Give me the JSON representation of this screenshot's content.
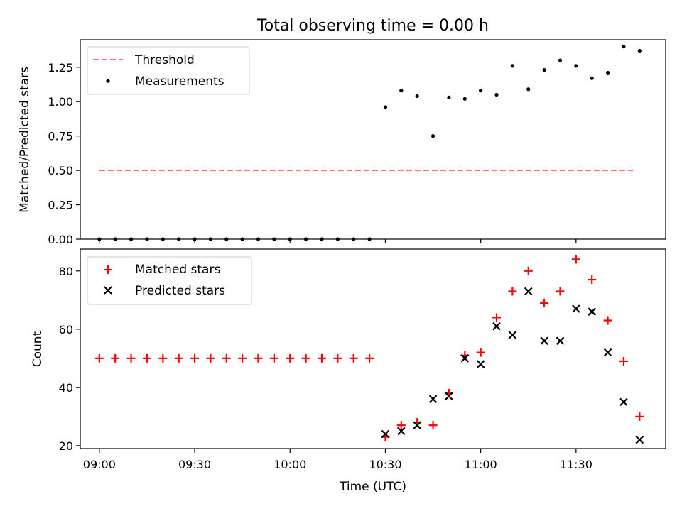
{
  "figure_title": "Total observing time = 0.00 h",
  "chart_data": [
    {
      "type": "scatter",
      "ylabel": "Matched/Predicted stars",
      "xlim": [
        -0.1,
        2.97
      ],
      "ylim": [
        0.0,
        1.45
      ],
      "yticks": [
        0.0,
        0.25,
        0.5,
        0.75,
        1.0,
        1.25
      ],
      "ytick_labels": [
        "0.00",
        "0.25",
        "0.50",
        "0.75",
        "1.00",
        "1.25"
      ],
      "grid": false,
      "legend": "top-left",
      "threshold": {
        "name": "Threshold",
        "color": "#ff7070",
        "style": "dashed",
        "y": 0.5,
        "x": [
          0.0,
          2.8
        ]
      },
      "series": [
        {
          "name": "Measurements",
          "color": "#000000",
          "marker": "dot",
          "points": [
            [
              0.0,
              0
            ],
            [
              0.0833,
              0
            ],
            [
              0.1667,
              0
            ],
            [
              0.25,
              0
            ],
            [
              0.3333,
              0
            ],
            [
              0.4167,
              0
            ],
            [
              0.5,
              0
            ],
            [
              0.5833,
              0
            ],
            [
              0.6667,
              0
            ],
            [
              0.75,
              0
            ],
            [
              0.8333,
              0
            ],
            [
              0.9167,
              0
            ],
            [
              1.0,
              0
            ],
            [
              1.0833,
              0
            ],
            [
              1.1667,
              0
            ],
            [
              1.25,
              0
            ],
            [
              1.3333,
              0
            ],
            [
              1.4167,
              0
            ],
            [
              1.5,
              0.96
            ],
            [
              1.5833,
              1.08
            ],
            [
              1.6667,
              1.04
            ],
            [
              1.75,
              0.75
            ],
            [
              1.8333,
              1.03
            ],
            [
              1.9167,
              1.02
            ],
            [
              2.0,
              1.08
            ],
            [
              2.0833,
              1.05
            ],
            [
              2.1667,
              1.26
            ],
            [
              2.25,
              1.09
            ],
            [
              2.3333,
              1.23
            ],
            [
              2.4167,
              1.3
            ],
            [
              2.5,
              1.26
            ],
            [
              2.5833,
              1.17
            ],
            [
              2.6667,
              1.21
            ],
            [
              2.75,
              1.4
            ],
            [
              2.8333,
              1.37
            ]
          ]
        }
      ]
    },
    {
      "type": "scatter",
      "ylabel": "Count",
      "xlabel": "Time (UTC)",
      "xlim": [
        -0.1,
        2.97
      ],
      "ylim": [
        19,
        87.5
      ],
      "yticks": [
        20,
        40,
        60,
        80
      ],
      "ytick_labels": [
        "20",
        "40",
        "60",
        "80"
      ],
      "xticks": [
        0.0,
        0.5,
        1.0,
        1.5,
        2.0,
        2.5
      ],
      "xtick_labels": [
        "09:00",
        "09:30",
        "10:00",
        "10:30",
        "11:00",
        "11:30"
      ],
      "grid": false,
      "legend": "top-left",
      "series": [
        {
          "name": "Matched stars",
          "color": "#ff0000",
          "marker": "plus",
          "points": [
            [
              0.0,
              50
            ],
            [
              0.0833,
              50
            ],
            [
              0.1667,
              50
            ],
            [
              0.25,
              50
            ],
            [
              0.3333,
              50
            ],
            [
              0.4167,
              50
            ],
            [
              0.5,
              50
            ],
            [
              0.5833,
              50
            ],
            [
              0.6667,
              50
            ],
            [
              0.75,
              50
            ],
            [
              0.8333,
              50
            ],
            [
              0.9167,
              50
            ],
            [
              1.0,
              50
            ],
            [
              1.0833,
              50
            ],
            [
              1.1667,
              50
            ],
            [
              1.25,
              50
            ],
            [
              1.3333,
              50
            ],
            [
              1.4167,
              50
            ],
            [
              1.5,
              23
            ],
            [
              1.5833,
              27
            ],
            [
              1.6667,
              28
            ],
            [
              1.75,
              27
            ],
            [
              1.8333,
              38
            ],
            [
              1.9167,
              51
            ],
            [
              2.0,
              52
            ],
            [
              2.0833,
              64
            ],
            [
              2.1667,
              73
            ],
            [
              2.25,
              80
            ],
            [
              2.3333,
              69
            ],
            [
              2.4167,
              73
            ],
            [
              2.5,
              84
            ],
            [
              2.5833,
              77
            ],
            [
              2.6667,
              63
            ],
            [
              2.75,
              49
            ],
            [
              2.8333,
              30
            ]
          ]
        },
        {
          "name": "Predicted stars",
          "color": "#000000",
          "marker": "x",
          "points": [
            [
              1.5,
              24
            ],
            [
              1.5833,
              25
            ],
            [
              1.6667,
              27
            ],
            [
              1.75,
              36
            ],
            [
              1.8333,
              37
            ],
            [
              1.9167,
              50
            ],
            [
              2.0,
              48
            ],
            [
              2.0833,
              61
            ],
            [
              2.1667,
              58
            ],
            [
              2.25,
              73
            ],
            [
              2.3333,
              56
            ],
            [
              2.4167,
              56
            ],
            [
              2.5,
              67
            ],
            [
              2.5833,
              66
            ],
            [
              2.6667,
              52
            ],
            [
              2.75,
              35
            ],
            [
              2.8333,
              22
            ]
          ]
        }
      ]
    }
  ]
}
